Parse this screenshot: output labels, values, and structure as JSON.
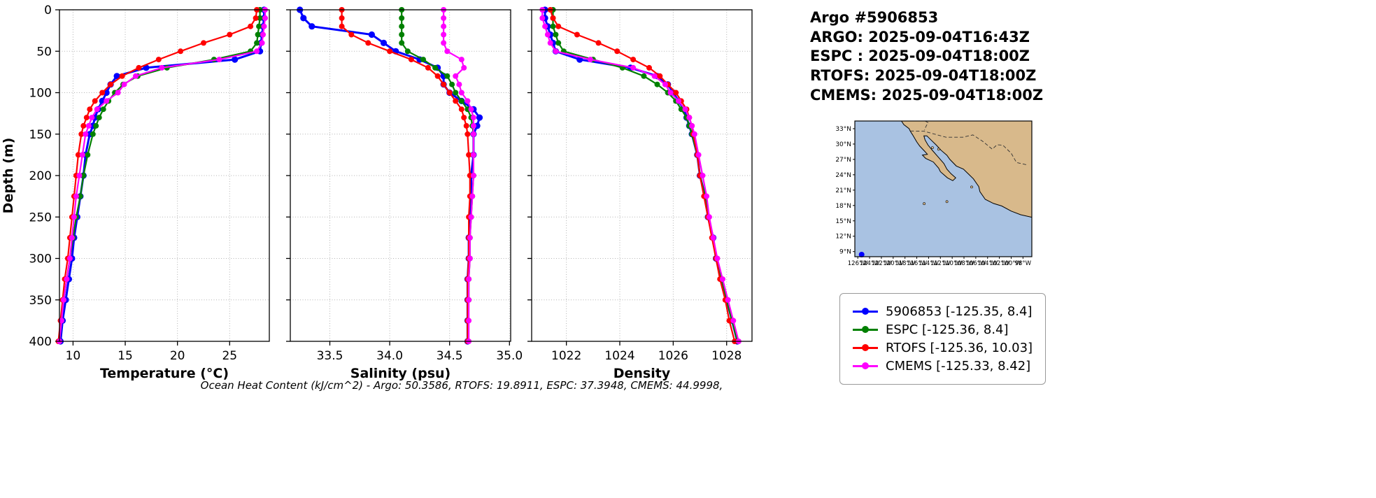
{
  "header": {
    "lines": [
      "Argo #5906853",
      "ARGO: 2025-09-04T16:43Z",
      "ESPC : 2025-09-04T18:00Z",
      "RTOFS: 2025-09-04T18:00Z",
      "CMEMS: 2025-09-04T18:00Z"
    ]
  },
  "legend": {
    "items": [
      {
        "label": "5906853 [-125.35, 8.4]",
        "color": "#0000ff"
      },
      {
        "label": "ESPC [-125.36, 8.4]",
        "color": "#008000"
      },
      {
        "label": "RTOFS [-125.36, 10.03]",
        "color": "#ff0000"
      },
      {
        "label": "CMEMS [-125.33, 8.42]",
        "color": "#ff00ff"
      }
    ]
  },
  "map": {
    "ocean_color": "#a9c2e2",
    "land_color": "#d8b98b",
    "lat_tick_values": [
      33,
      30,
      27,
      24,
      21,
      18,
      15,
      12,
      9
    ],
    "lat_labels": [
      "33°N",
      "30°N",
      "27°N",
      "24°N",
      "21°N",
      "18°N",
      "15°N",
      "12°N",
      "9°N"
    ],
    "lon_tick_values": [
      -126,
      -124,
      -122,
      -120,
      -118,
      -116,
      -114,
      -112,
      -110,
      -108,
      -106,
      -104,
      -102,
      -100,
      -98
    ],
    "lon_labels": [
      "126°W",
      "124°W",
      "122°W",
      "120°W",
      "118°W",
      "116°W",
      "114°W",
      "112°W",
      "110°W",
      "108°W",
      "106°W",
      "104°W",
      "102°W",
      "100°W",
      "98°W"
    ],
    "marker": {
      "lon": -125.35,
      "lat": 8.4,
      "color": "#0000ff"
    }
  },
  "chart_data": {
    "type": "line",
    "depth_label": "Depth (m)",
    "depth_lim": [
      0,
      400
    ],
    "depth_ticks": [
      0,
      50,
      100,
      150,
      200,
      250,
      300,
      350,
      400
    ],
    "grid": true,
    "legend_position": "right-panel",
    "depths": [
      0,
      10,
      20,
      30,
      40,
      50,
      60,
      70,
      80,
      90,
      100,
      110,
      120,
      130,
      140,
      150,
      175,
      200,
      225,
      250,
      275,
      300,
      325,
      350,
      375,
      400
    ],
    "panels": [
      {
        "key": "temperature",
        "xlabel": "Temperature (°C)",
        "xlim": [
          8.7,
          28.8
        ],
        "xticks": [
          10,
          15,
          20,
          25
        ],
        "xtick_labels": [
          "10",
          "15",
          "20",
          "25"
        ]
      },
      {
        "key": "salinity",
        "xlabel": "Salinity (psu)",
        "xlim": [
          33.17,
          35.01
        ],
        "xticks": [
          33.5,
          34.0,
          34.5,
          35.0
        ],
        "xtick_labels": [
          "33.5",
          "34.0",
          "34.5",
          "35.0"
        ]
      },
      {
        "key": "density",
        "xlabel": "Density",
        "xlim": [
          1020.7,
          1028.95
        ],
        "xticks": [
          1022,
          1024,
          1026,
          1028
        ],
        "xtick_labels": [
          "1022",
          "1024",
          "1026",
          "1028"
        ]
      }
    ],
    "series": [
      {
        "name": "5906853",
        "color": "#0000ff",
        "line_width": 3,
        "marker_size": 4.6,
        "values": {
          "temperature": [
            28.3,
            28.3,
            28.2,
            28.1,
            28.0,
            27.9,
            25.5,
            17.0,
            14.2,
            13.6,
            13.2,
            12.8,
            12.4,
            12.1,
            11.9,
            11.6,
            11.2,
            11.0,
            10.7,
            10.4,
            10.1,
            9.9,
            9.6,
            9.3,
            9.0,
            8.8
          ],
          "salinity": [
            33.25,
            33.28,
            33.35,
            33.85,
            33.95,
            34.05,
            34.25,
            34.4,
            34.45,
            34.45,
            34.5,
            34.6,
            34.7,
            34.75,
            34.73,
            34.7,
            34.7,
            34.68,
            34.68,
            34.67,
            34.66,
            34.66,
            34.65,
            34.65,
            34.65,
            34.65
          ],
          "density": [
            1021.2,
            1021.2,
            1021.3,
            1021.4,
            1021.5,
            1021.6,
            1022.5,
            1024.4,
            1025.4,
            1025.8,
            1026.0,
            1026.2,
            1026.4,
            1026.5,
            1026.6,
            1026.7,
            1026.9,
            1027.0,
            1027.2,
            1027.3,
            1027.5,
            1027.6,
            1027.8,
            1028.0,
            1028.2,
            1028.4
          ]
        }
      },
      {
        "name": "ESPC",
        "color": "#008000",
        "line_width": 2.2,
        "marker_size": 4,
        "values": {
          "temperature": [
            27.9,
            27.9,
            27.8,
            27.7,
            27.6,
            27.0,
            23.5,
            19.0,
            16.2,
            14.8,
            14.0,
            13.4,
            12.9,
            12.5,
            12.2,
            11.9,
            11.4,
            11.0,
            10.7,
            10.3,
            10.0,
            9.7,
            9.4,
            9.1,
            8.9,
            8.7
          ],
          "salinity": [
            34.1,
            34.1,
            34.1,
            34.1,
            34.1,
            34.15,
            34.28,
            34.38,
            34.48,
            34.52,
            34.55,
            34.6,
            34.65,
            34.68,
            34.69,
            34.7,
            34.7,
            34.7,
            34.69,
            34.68,
            34.67,
            34.67,
            34.66,
            34.66,
            34.65,
            34.65
          ],
          "density": [
            1021.5,
            1021.5,
            1021.5,
            1021.6,
            1021.7,
            1021.9,
            1023.0,
            1024.1,
            1024.9,
            1025.4,
            1025.8,
            1026.1,
            1026.3,
            1026.5,
            1026.6,
            1026.7,
            1026.9,
            1027.0,
            1027.2,
            1027.3,
            1027.5,
            1027.6,
            1027.8,
            1028.0,
            1028.2,
            1028.4
          ]
        }
      },
      {
        "name": "RTOFS",
        "color": "#ff0000",
        "line_width": 2.2,
        "marker_size": 4,
        "values": {
          "temperature": [
            27.6,
            27.5,
            27.0,
            25.0,
            22.5,
            20.3,
            18.2,
            16.3,
            14.7,
            13.6,
            12.8,
            12.1,
            11.6,
            11.3,
            11.0,
            10.8,
            10.5,
            10.3,
            10.1,
            9.9,
            9.7,
            9.5,
            9.2,
            9.0,
            8.8,
            8.6
          ],
          "salinity": [
            33.6,
            33.6,
            33.6,
            33.68,
            33.82,
            34.0,
            34.18,
            34.32,
            34.4,
            34.45,
            34.5,
            34.55,
            34.6,
            34.62,
            34.64,
            34.65,
            34.66,
            34.67,
            34.67,
            34.66,
            34.66,
            34.66,
            34.65,
            34.65,
            34.65,
            34.65
          ],
          "density": [
            1021.4,
            1021.5,
            1021.7,
            1022.4,
            1023.2,
            1023.9,
            1024.5,
            1025.1,
            1025.5,
            1025.8,
            1026.1,
            1026.3,
            1026.5,
            1026.6,
            1026.7,
            1026.75,
            1026.9,
            1027.0,
            1027.15,
            1027.3,
            1027.45,
            1027.6,
            1027.75,
            1027.95,
            1028.1,
            1028.3
          ]
        }
      },
      {
        "name": "CMEMS",
        "color": "#ff00ff",
        "line_width": 2.2,
        "marker_size": 4,
        "values": {
          "temperature": [
            28.4,
            28.4,
            28.3,
            28.2,
            28.1,
            27.6,
            24.0,
            18.5,
            16.0,
            14.9,
            14.3,
            13.2,
            12.3,
            11.8,
            11.5,
            11.2,
            10.9,
            10.6,
            10.3,
            10.1,
            9.9,
            9.7,
            9.4,
            9.1,
            8.9,
            8.7
          ],
          "salinity": [
            34.45,
            34.45,
            34.45,
            34.45,
            34.45,
            34.48,
            34.6,
            34.62,
            34.55,
            34.58,
            34.6,
            34.65,
            34.68,
            34.7,
            34.7,
            34.7,
            34.7,
            34.7,
            34.69,
            34.68,
            34.67,
            34.67,
            34.66,
            34.66,
            34.66,
            34.66
          ],
          "density": [
            1021.1,
            1021.1,
            1021.2,
            1021.3,
            1021.4,
            1021.6,
            1022.9,
            1024.5,
            1025.3,
            1025.7,
            1025.9,
            1026.2,
            1026.45,
            1026.6,
            1026.7,
            1026.8,
            1026.95,
            1027.1,
            1027.25,
            1027.35,
            1027.5,
            1027.65,
            1027.85,
            1028.05,
            1028.25,
            1028.45
          ]
        }
      }
    ],
    "footnote": "Ocean Heat Content (kJ/cm^2) - Argo: 50.3586,  RTOFS: 19.8911,  ESPC: 37.3948,  CMEMS: 44.9998,"
  }
}
